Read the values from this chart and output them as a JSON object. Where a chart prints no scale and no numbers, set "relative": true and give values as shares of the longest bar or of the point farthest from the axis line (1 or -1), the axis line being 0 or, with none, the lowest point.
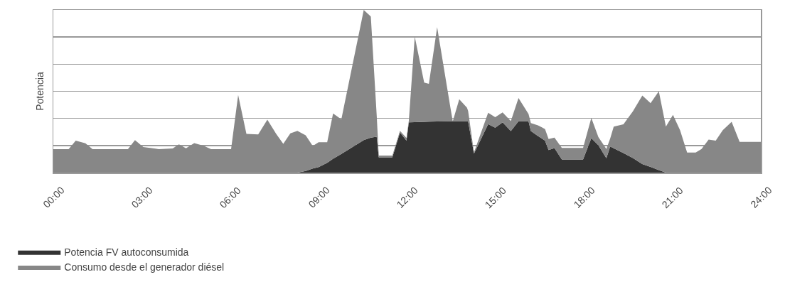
{
  "chart_data": {
    "type": "area",
    "relative": true,
    "stacked": true,
    "ylabel": "Potencia",
    "x": [
      0,
      0.52,
      0.76,
      1.09,
      1.33,
      2.53,
      2.77,
      3.05,
      3.42,
      3.58,
      4.05,
      4.26,
      4.5,
      4.78,
      5.1,
      5.35,
      6.03,
      6.27,
      6.55,
      6.95,
      7.26,
      7.56,
      7.8,
      8.04,
      8.28,
      8.56,
      8.8,
      9.0,
      9.29,
      9.49,
      9.77,
      10.53,
      10.77,
      10.97,
      11.04,
      11.5,
      11.76,
      11.98,
      12.06,
      12.26,
      12.58,
      12.74,
      13.02,
      13.47,
      13.55,
      13.77,
      14.03,
      14.07,
      14.27,
      14.75,
      14.99,
      15.24,
      15.52,
      15.78,
      16.12,
      16.2,
      16.44,
      16.68,
      16.8,
      17.0,
      17.25,
      17.97,
      18.25,
      18.49,
      18.76,
      18.89,
      19.01,
      19.34,
      19.66,
      19.98,
      20.26,
      20.54,
      20.78,
      21.02,
      21.26,
      21.5,
      21.79,
      21.99,
      22.23,
      22.47,
      22.71,
      23.01,
      23.28,
      24
    ],
    "xlim": [
      0,
      24
    ],
    "xticks": [
      {
        "value": 0,
        "label": "00:00"
      },
      {
        "value": 3,
        "label": "03:00"
      },
      {
        "value": 6,
        "label": "06:00"
      },
      {
        "value": 9,
        "label": "09:00"
      },
      {
        "value": 12,
        "label": "12:00"
      },
      {
        "value": 15,
        "label": "15:00"
      },
      {
        "value": 18,
        "label": "18:00"
      },
      {
        "value": 21,
        "label": "21:00"
      },
      {
        "value": 24,
        "label": "24:00"
      }
    ],
    "series": [
      {
        "name": "Potencia FV autoconsumida",
        "color": "#333333",
        "values": [
          0,
          0,
          0,
          0,
          0,
          0,
          0,
          0,
          0,
          0,
          0,
          0,
          0,
          0,
          0,
          0,
          0,
          0,
          0,
          0,
          0,
          0,
          0,
          0,
          0,
          0.01,
          0.025,
          0.034,
          0.06,
          0.085,
          0.115,
          0.2,
          0.215,
          0.22,
          0.094,
          0.094,
          0.247,
          0.197,
          0.309,
          0.31,
          0.312,
          0.313,
          0.314,
          0.316,
          0.316,
          0.316,
          0.316,
          0.316,
          0.117,
          0.298,
          0.276,
          0.309,
          0.255,
          0.316,
          0.316,
          0.255,
          0.225,
          0.197,
          0.139,
          0.151,
          0.081,
          0.081,
          0.212,
          0.168,
          0.088,
          0.16,
          0.15,
          0.12,
          0.09,
          0.052,
          0.035,
          0.015,
          0,
          0,
          0,
          0,
          0,
          0,
          0,
          0,
          0,
          0,
          0,
          0
        ]
      },
      {
        "name": "Consumo desde el generador diésel",
        "color": "#878787",
        "values": [
          0.144,
          0.144,
          0.197,
          0.18,
          0.144,
          0.144,
          0.2,
          0.157,
          0.148,
          0.144,
          0.148,
          0.174,
          0.15,
          0.181,
          0.165,
          0.144,
          0.144,
          0.477,
          0.238,
          0.235,
          0.325,
          0.238,
          0.177,
          0.241,
          0.257,
          0.219,
          0.139,
          0.153,
          0.127,
          0.278,
          0.212,
          0.8,
          0.745,
          0.13,
          0.011,
          0.011,
          0.01,
          0.016,
          0.011,
          0.526,
          0.241,
          0.233,
          0.58,
          0.084,
          0,
          0.135,
          0.084,
          0.064,
          0.007,
          0.07,
          0.065,
          0.061,
          0.062,
          0.142,
          0.044,
          0.05,
          0.065,
          0.071,
          0.067,
          0.064,
          0.071,
          0.071,
          0.124,
          0.05,
          0.057,
          0.05,
          0.133,
          0.177,
          0.287,
          0.422,
          0.392,
          0.485,
          0.283,
          0.355,
          0.261,
          0.123,
          0.123,
          0.145,
          0.203,
          0.196,
          0.261,
          0.312,
          0.189,
          0.189
        ]
      }
    ],
    "grid": "y",
    "legend": "bottom"
  }
}
